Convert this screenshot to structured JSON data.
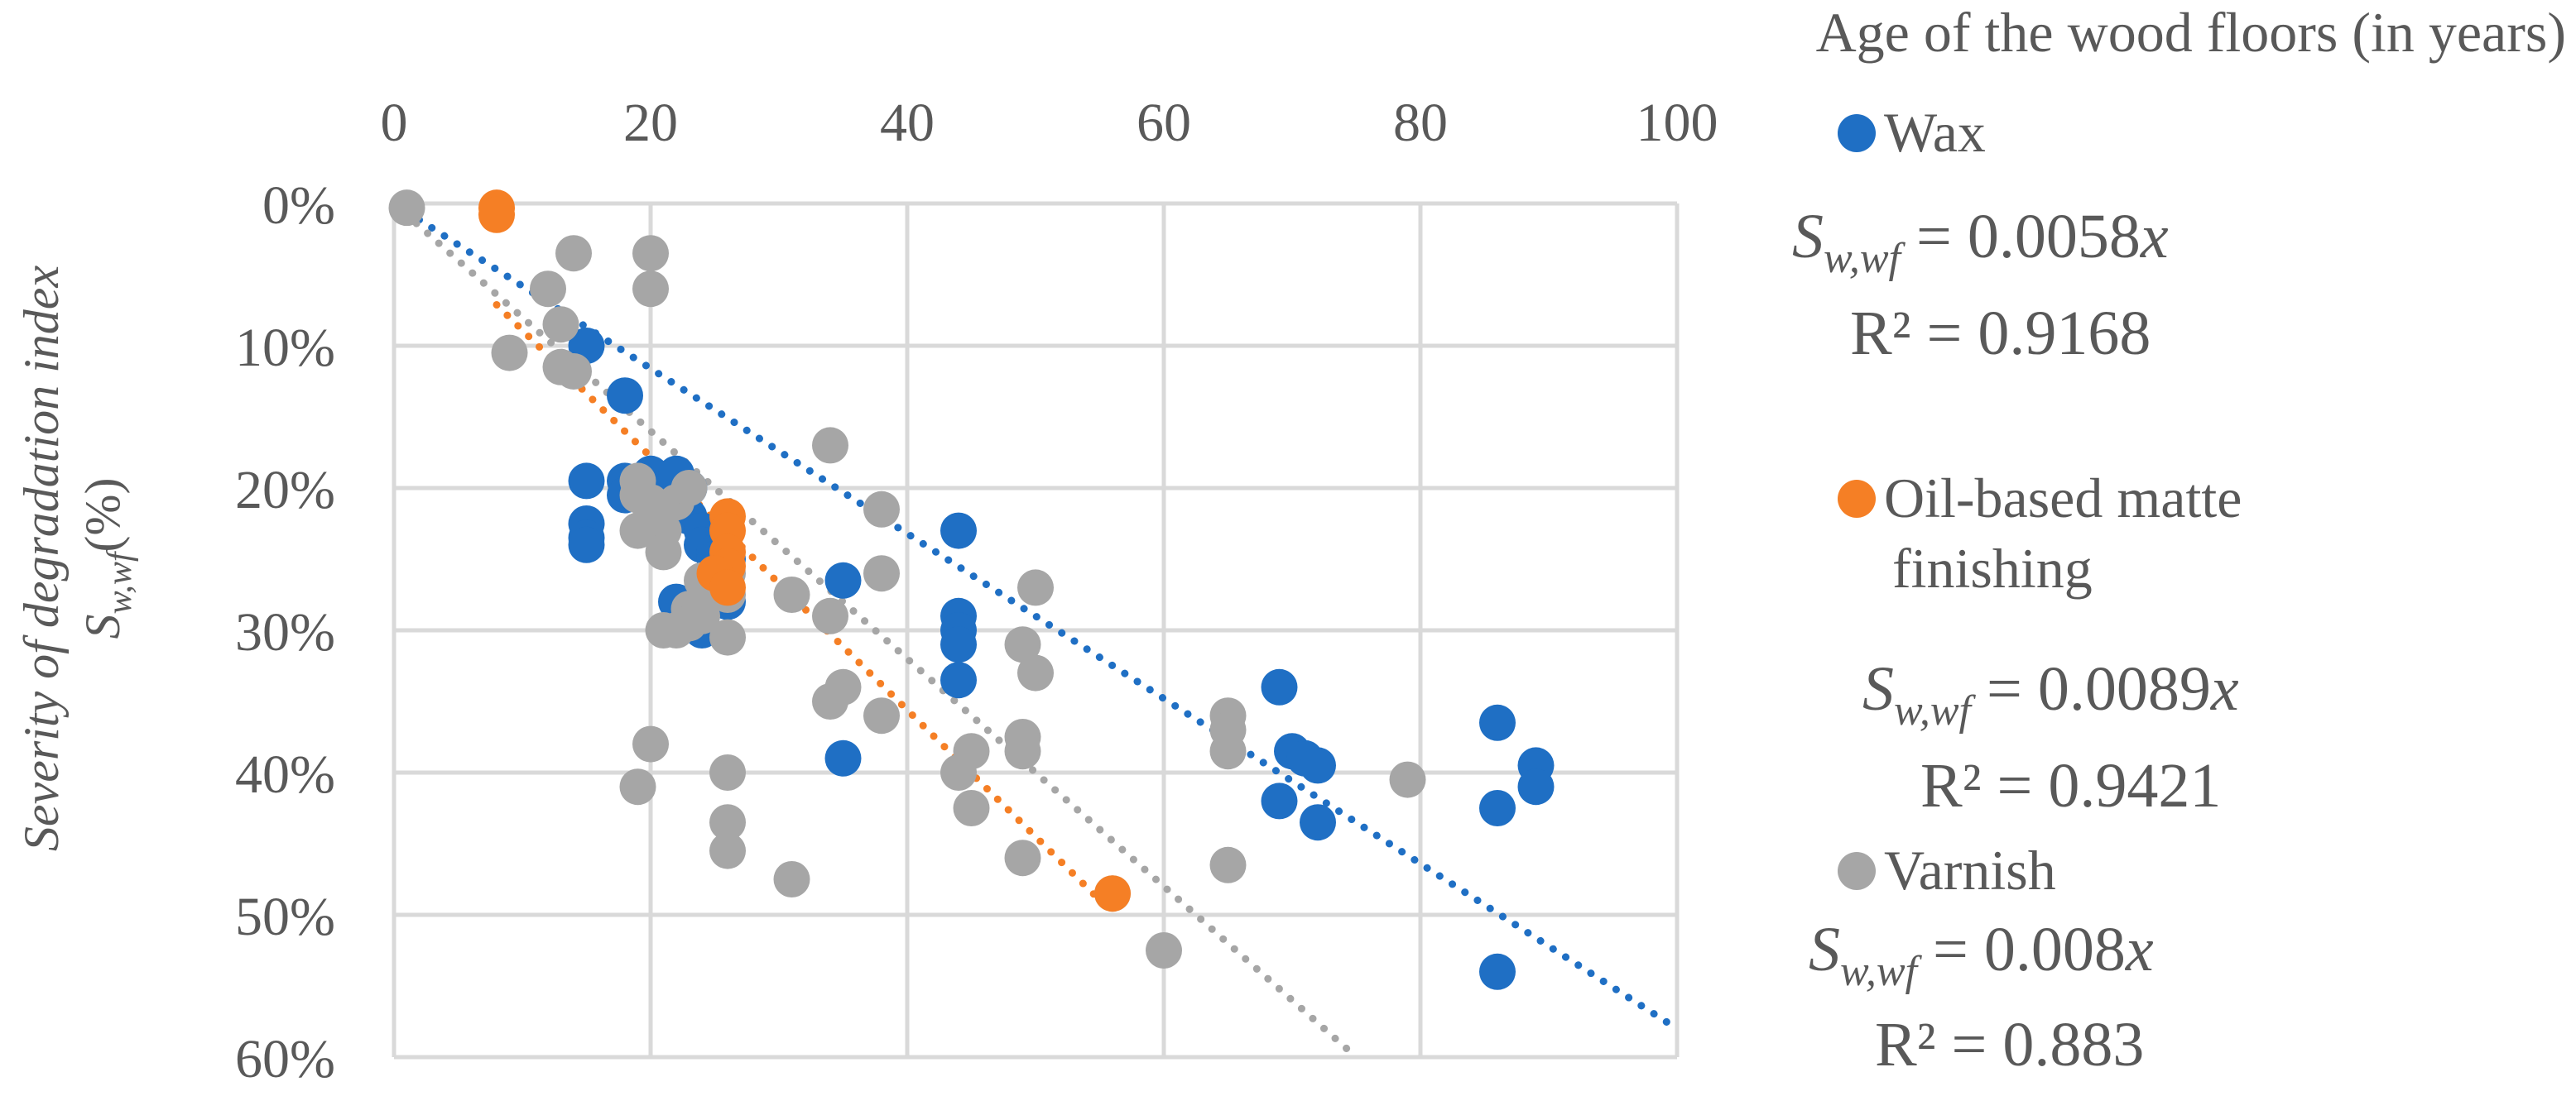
{
  "chart_data": {
    "type": "scatter",
    "title": "",
    "xlabel": "Age of the wood floors (in years)",
    "ylabel_line1": "Severity of degradation index",
    "ylabel_symbol": "S",
    "ylabel_subscript": "w,wf",
    "ylabel_unit": "(%)",
    "xlim": [
      0,
      100
    ],
    "ylim": [
      0,
      60
    ],
    "x_ticks": [
      "0",
      "20",
      "40",
      "60",
      "80",
      "100"
    ],
    "y_ticks": [
      "0%",
      "10%",
      "20%",
      "30%",
      "40%",
      "50%",
      "60%"
    ],
    "y_axis_inverted": true,
    "x_axis_position": "top",
    "grid": true,
    "legend_position": "right",
    "series": [
      {
        "name": "Wax",
        "color": "#1F6FC4",
        "trendline": {
          "slope": 0.0058,
          "r2": 0.9168,
          "equation_rhs": "= 0.0058",
          "r2_label": "R² = 0.9168"
        },
        "points": [
          [
            15,
            10
          ],
          [
            18,
            13.5
          ],
          [
            15,
            19.5
          ],
          [
            18,
            19.5
          ],
          [
            18,
            20.5
          ],
          [
            19,
            20
          ],
          [
            20,
            19
          ],
          [
            21,
            20
          ],
          [
            22,
            19
          ],
          [
            23,
            20
          ],
          [
            15,
            22.5
          ],
          [
            15,
            23.5
          ],
          [
            15,
            24
          ],
          [
            22,
            21
          ],
          [
            23,
            22
          ],
          [
            24,
            23
          ],
          [
            24,
            24
          ],
          [
            25,
            24.5
          ],
          [
            25,
            25
          ],
          [
            26,
            25
          ],
          [
            22,
            28
          ],
          [
            23,
            29
          ],
          [
            24,
            30
          ],
          [
            25,
            26
          ],
          [
            26,
            28
          ],
          [
            35,
            26.5
          ],
          [
            44,
            23
          ],
          [
            44,
            29
          ],
          [
            44,
            30
          ],
          [
            44,
            31
          ],
          [
            44,
            33.5
          ],
          [
            35,
            39
          ],
          [
            69,
            34
          ],
          [
            70,
            38.5
          ],
          [
            71,
            39
          ],
          [
            72,
            39.5
          ],
          [
            69,
            42
          ],
          [
            72,
            43.5
          ],
          [
            86,
            36.5
          ],
          [
            89,
            39.5
          ],
          [
            89,
            41
          ],
          [
            86,
            42.5
          ],
          [
            86,
            54
          ]
        ]
      },
      {
        "name": "Oil-based matte finishing",
        "legend_line1": "Oil-based matte",
        "legend_line2": "finishing",
        "color": "#F57F25",
        "trendline": {
          "slope": 0.0089,
          "r2": 0.9421,
          "equation_rhs": "= 0.0089",
          "r2_label": "R² = 0.9421"
        },
        "points": [
          [
            8,
            0.3
          ],
          [
            8,
            0.8
          ],
          [
            26,
            22
          ],
          [
            26,
            23
          ],
          [
            26,
            24.5
          ],
          [
            26,
            25.5
          ],
          [
            25,
            26
          ],
          [
            26,
            27
          ],
          [
            56,
            48.5
          ]
        ]
      },
      {
        "name": "Varnish",
        "color": "#A6A6A6",
        "trendline": {
          "slope": 0.008,
          "r2": 0.883,
          "equation_rhs": "= 0.008",
          "r2_label": "R² = 0.883"
        },
        "points": [
          [
            1,
            0.3
          ],
          [
            14,
            3.5
          ],
          [
            20,
            3.5
          ],
          [
            20,
            6
          ],
          [
            12,
            6
          ],
          [
            13,
            8.5
          ],
          [
            9,
            10.5
          ],
          [
            13,
            11.5
          ],
          [
            14,
            11.8
          ],
          [
            34,
            17
          ],
          [
            19,
            19.5
          ],
          [
            19,
            20.5
          ],
          [
            20,
            21
          ],
          [
            21,
            21.5
          ],
          [
            22,
            21
          ],
          [
            23,
            20
          ],
          [
            20,
            22
          ],
          [
            21,
            23
          ],
          [
            19,
            23
          ],
          [
            21,
            24.5
          ],
          [
            38,
            21.5
          ],
          [
            24,
            26.5
          ],
          [
            26,
            26
          ],
          [
            25,
            27
          ],
          [
            26,
            27.5
          ],
          [
            23,
            28.5
          ],
          [
            23,
            29.5
          ],
          [
            24,
            29
          ],
          [
            22,
            30
          ],
          [
            21,
            30
          ],
          [
            26,
            30.5
          ],
          [
            31,
            27.5
          ],
          [
            34,
            29
          ],
          [
            38,
            26
          ],
          [
            50,
            27
          ],
          [
            49,
            31
          ],
          [
            50,
            33
          ],
          [
            35,
            34
          ],
          [
            34,
            35
          ],
          [
            38,
            36
          ],
          [
            20,
            38
          ],
          [
            19,
            41
          ],
          [
            26,
            40
          ],
          [
            26,
            43.5
          ],
          [
            26,
            45.5
          ],
          [
            31,
            47.5
          ],
          [
            44,
            40
          ],
          [
            45,
            38.5
          ],
          [
            45,
            42.5
          ],
          [
            49,
            37.5
          ],
          [
            49,
            38.5
          ],
          [
            49,
            46
          ],
          [
            56,
            48.5
          ],
          [
            60,
            52.5
          ],
          [
            65,
            36
          ],
          [
            65,
            37
          ],
          [
            65,
            38.5
          ],
          [
            65,
            46.5
          ],
          [
            79,
            40.5
          ]
        ]
      }
    ]
  },
  "equation_symbol": "S",
  "equation_subscript": "w,wf",
  "equation_variable": "x"
}
